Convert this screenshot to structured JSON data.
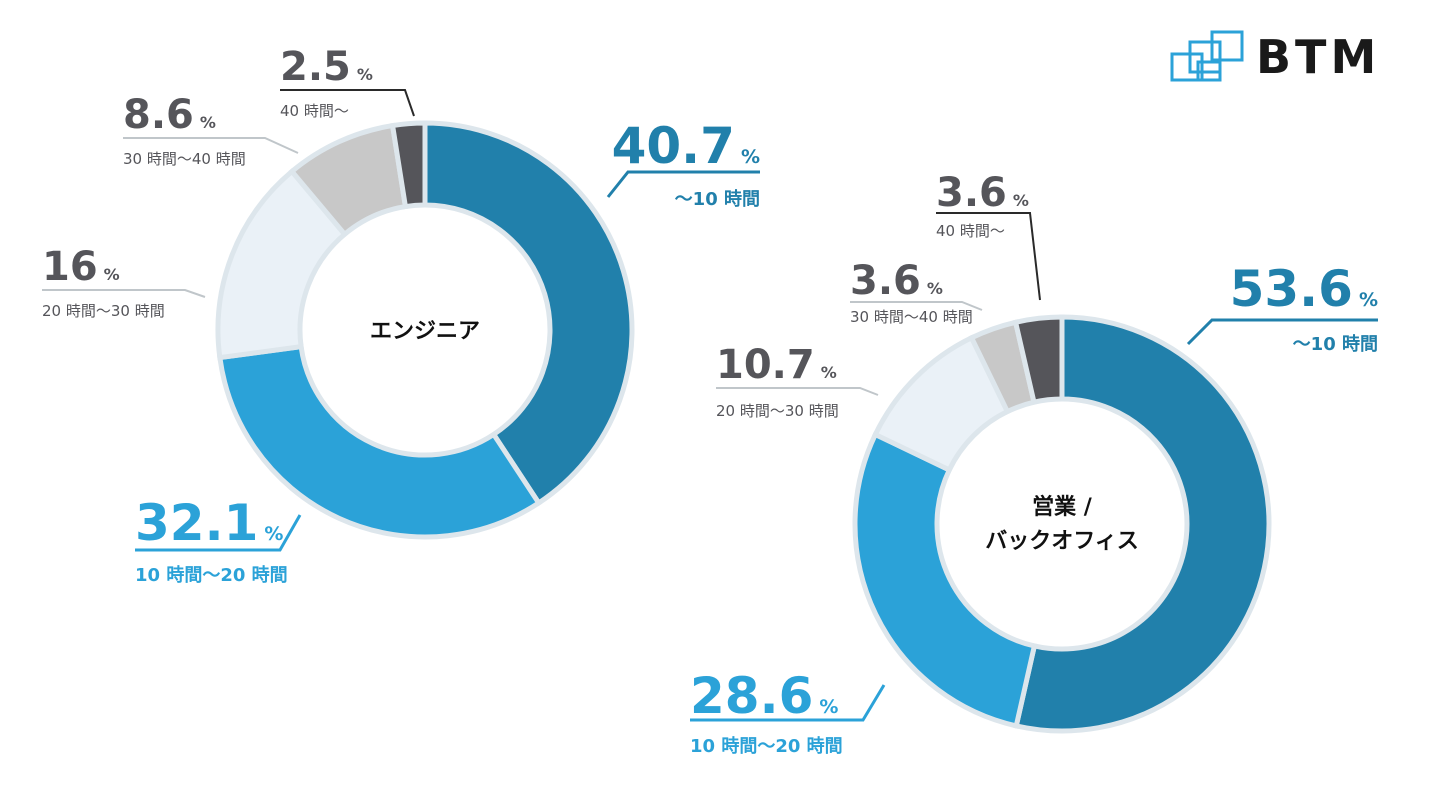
{
  "brand": {
    "name": "BTM"
  },
  "colors": {
    "dark_blue": "#2180ab",
    "light_blue": "#2ba2d8",
    "pale_blue": "#eaf1f7",
    "light_gray": "#c8c8c8",
    "dark_gray": "#55555a",
    "gap": "#dde6ec"
  },
  "chart_data": [
    {
      "type": "pie",
      "variant": "donut",
      "title": "エンジニア",
      "categories": [
        "〜10 時間",
        "10 時間〜20 時間",
        "20 時間〜30 時間",
        "30 時間〜40 時間",
        "40 時間〜"
      ],
      "values": [
        40.7,
        32.1,
        16,
        8.6,
        2.5
      ],
      "value_labels": [
        "40.7",
        "32.1",
        "16",
        "8.6",
        "2.5"
      ],
      "unit": "%",
      "colors": [
        "#2180ab",
        "#2ba2d8",
        "#eaf1f7",
        "#c8c8c8",
        "#55555a"
      ]
    },
    {
      "type": "pie",
      "variant": "donut",
      "title": "営業 / バックオフィス",
      "title_lines": [
        "営業 /",
        "バックオフィス"
      ],
      "categories": [
        "〜10 時間",
        "10 時間〜20 時間",
        "20 時間〜30 時間",
        "30 時間〜40 時間",
        "40 時間〜"
      ],
      "values": [
        53.6,
        28.6,
        10.7,
        3.6,
        3.6
      ],
      "value_labels": [
        "53.6",
        "28.6",
        "10.7",
        "3.6",
        "3.6"
      ],
      "unit": "%",
      "colors": [
        "#2180ab",
        "#2ba2d8",
        "#eaf1f7",
        "#c8c8c8",
        "#55555a"
      ]
    }
  ]
}
